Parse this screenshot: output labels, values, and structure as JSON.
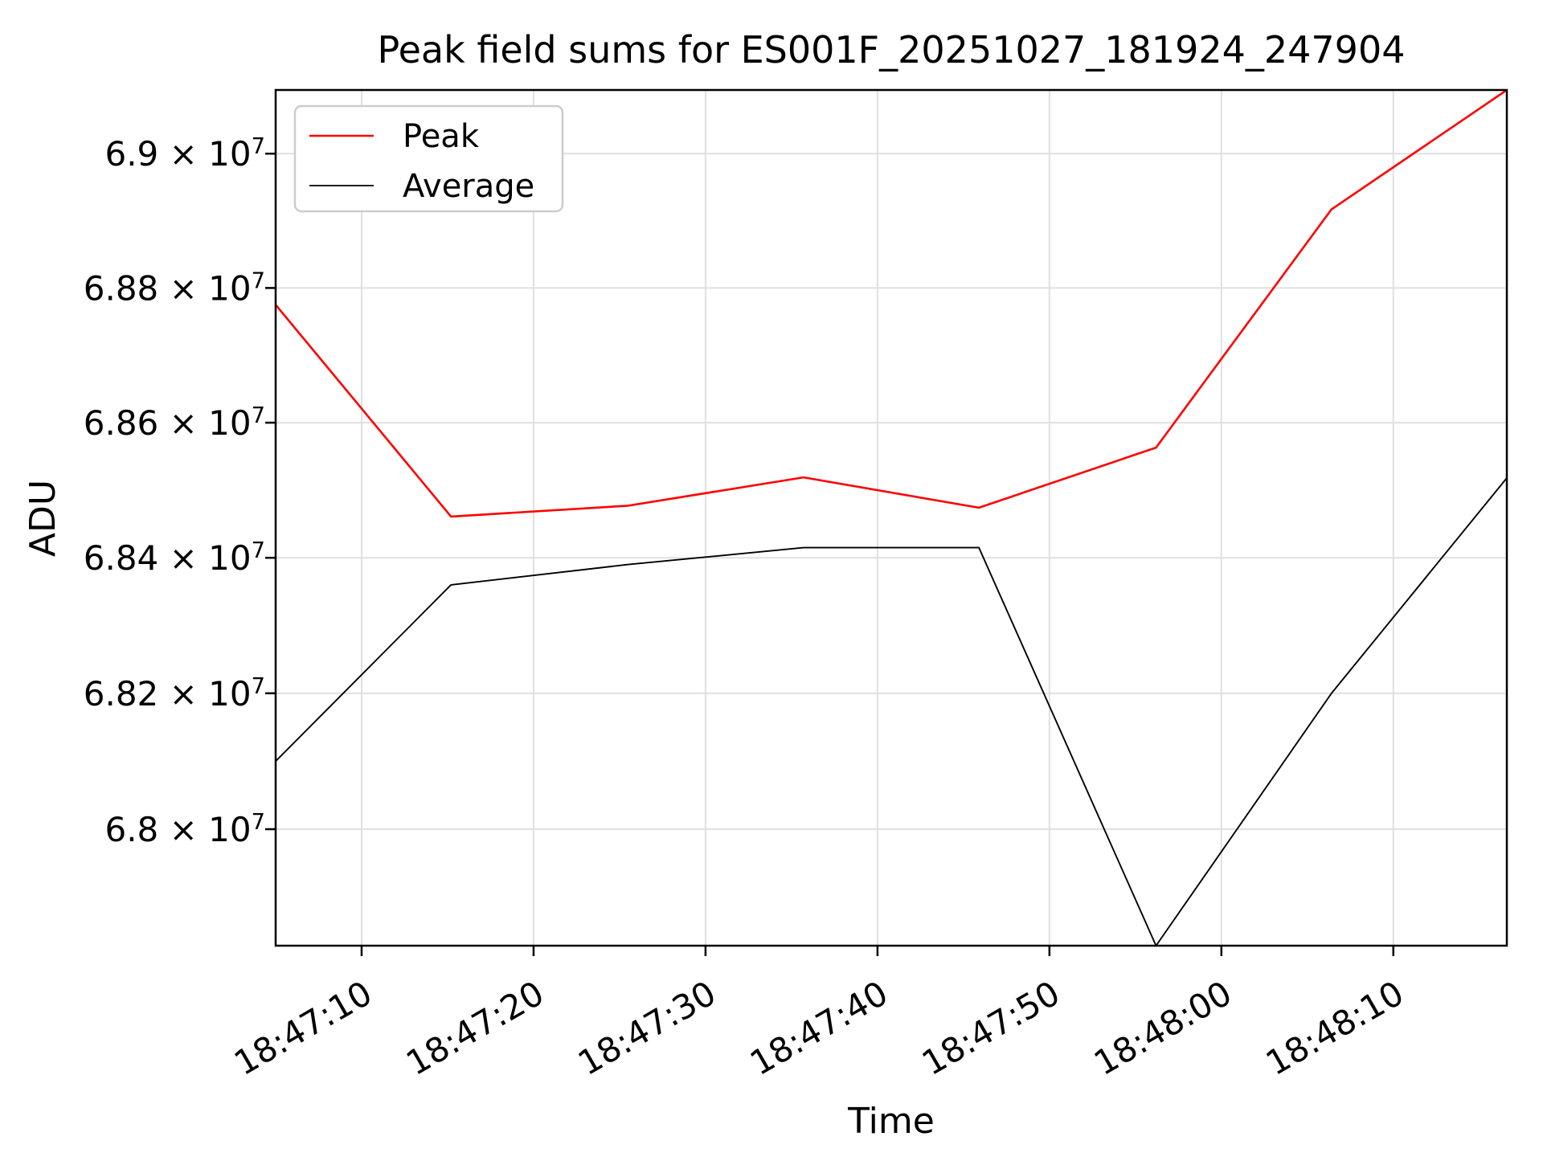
{
  "figure": {
    "background": "#ffffff",
    "plot_background": "#ffffff"
  },
  "chart_data": {
    "type": "line",
    "title": "Peak field sums for ES001F_20251027_181924_247904",
    "xlabel": "Time",
    "ylabel": "ADU",
    "yscale": "log",
    "grid": true,
    "grid_color": "#e0e0e0",
    "spine_color": "#000000",
    "legend_position": "upper-left",
    "legend_border_color": "#cccccc",
    "xlim_seconds": [
      67625.0,
      67696.6
    ],
    "ylim": [
      67829000,
      69095000
    ],
    "x_seconds": [
      67625.0,
      67635.2,
      67645.5,
      67655.7,
      67665.9,
      67676.2,
      67686.4,
      67696.6
    ],
    "series": [
      {
        "name": "Peak",
        "color": "#ff0000",
        "values": [
          68775000,
          68461000,
          68477000,
          68519000,
          68474000,
          68563000,
          68917000,
          69095000
        ]
      },
      {
        "name": "Average",
        "color": "#000000",
        "values": [
          68100000,
          68360000,
          68390000,
          68415000,
          68415000,
          67829000,
          68200000,
          68518000
        ]
      }
    ],
    "xticks": [
      {
        "label": "18:47:10",
        "seconds": 67630
      },
      {
        "label": "18:47:20",
        "seconds": 67640
      },
      {
        "label": "18:47:30",
        "seconds": 67650
      },
      {
        "label": "18:47:40",
        "seconds": 67660
      },
      {
        "label": "18:47:50",
        "seconds": 67670
      },
      {
        "label": "18:48:00",
        "seconds": 67680
      },
      {
        "label": "18:48:10",
        "seconds": 67690
      }
    ],
    "yticks": [
      {
        "label": "6.8 × 10",
        "exp": "7",
        "value": 68000000
      },
      {
        "label": "6.82 × 10",
        "exp": "7",
        "value": 68200000
      },
      {
        "label": "6.84 × 10",
        "exp": "7",
        "value": 68400000
      },
      {
        "label": "6.86 × 10",
        "exp": "7",
        "value": 68600000
      },
      {
        "label": "6.88 × 10",
        "exp": "7",
        "value": 68800000
      },
      {
        "label": "6.9 × 10",
        "exp": "7",
        "value": 69000000
      }
    ]
  }
}
